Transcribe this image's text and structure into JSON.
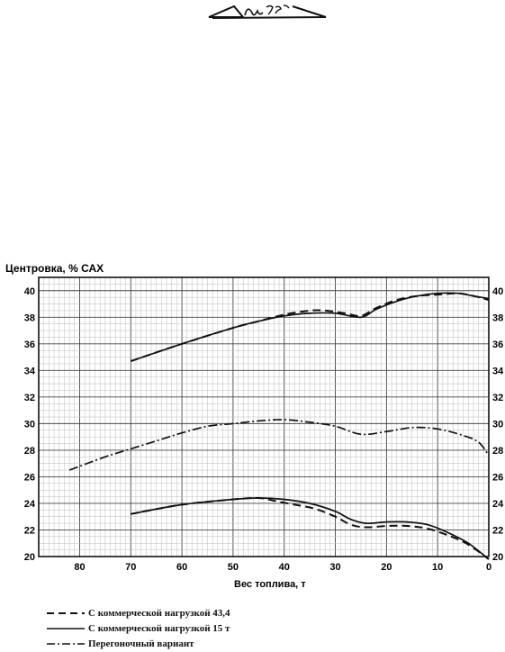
{
  "stamp_text": "Ил 76-Т",
  "chart_data": {
    "type": "line",
    "ylabel": "Центровка, % САХ",
    "xlabel": "Вес топлива, т",
    "xlim": [
      88,
      0
    ],
    "ylim": [
      20,
      41
    ],
    "x_ticks": [
      80,
      70,
      60,
      50,
      40,
      30,
      20,
      10,
      0
    ],
    "y_ticks": [
      20,
      22,
      24,
      26,
      28,
      30,
      32,
      34,
      36,
      38,
      40
    ],
    "grid": true,
    "legend_position": "bottom-left",
    "series": [
      {
        "name": "С коммерческой нагрузкой 43,4",
        "style": "dashed",
        "segments": [
          {
            "x": [
              70,
              60,
              50,
              45,
              40,
              35,
              32,
              28,
              25,
              22,
              18,
              14,
              10,
              6,
              3,
              0
            ],
            "y": [
              34.7,
              36,
              37.2,
              37.7,
              38.2,
              38.5,
              38.5,
              38.3,
              38.1,
              38.7,
              39.3,
              39.6,
              39.7,
              39.8,
              39.6,
              39.3
            ]
          },
          {
            "x": [
              70,
              60,
              50,
              45,
              42,
              38,
              34,
              30,
              27,
              24,
              20,
              16,
              12,
              8,
              4,
              0
            ],
            "y": [
              23.2,
              23.9,
              24.3,
              24.4,
              24.2,
              23.9,
              23.6,
              23,
              22.4,
              22.2,
              22.3,
              22.3,
              22.1,
              21.6,
              20.9,
              19.8
            ]
          }
        ]
      },
      {
        "name": "С коммерческой нагрузкой 15 т",
        "style": "solid",
        "segments": [
          {
            "x": [
              70,
              60,
              50,
              45,
              40,
              35,
              30,
              25,
              22,
              18,
              14,
              10,
              6,
              3,
              0
            ],
            "y": [
              34.7,
              36,
              37.2,
              37.7,
              38.1,
              38.3,
              38.3,
              38,
              38.6,
              39.2,
              39.6,
              39.8,
              39.8,
              39.6,
              39.4
            ]
          },
          {
            "x": [
              70,
              60,
              50,
              45,
              40,
              35,
              30,
              27,
              24,
              20,
              16,
              12,
              8,
              4,
              0
            ],
            "y": [
              23.2,
              23.9,
              24.3,
              24.4,
              24.3,
              24,
              23.4,
              22.8,
              22.5,
              22.6,
              22.6,
              22.4,
              21.8,
              21,
              19.8
            ]
          }
        ]
      },
      {
        "name": "Перегоночный вариант",
        "style": "dash-dot",
        "segments": [
          {
            "x": [
              82,
              75,
              70,
              65,
              60,
              55,
              50,
              45,
              40,
              35,
              30,
              25,
              20,
              15,
              10,
              5,
              2,
              0
            ],
            "y": [
              26.5,
              27.5,
              28.1,
              28.7,
              29.3,
              29.8,
              30,
              30.2,
              30.3,
              30.1,
              29.8,
              29.2,
              29.4,
              29.7,
              29.6,
              29.1,
              28.6,
              27.6
            ]
          }
        ]
      }
    ]
  }
}
